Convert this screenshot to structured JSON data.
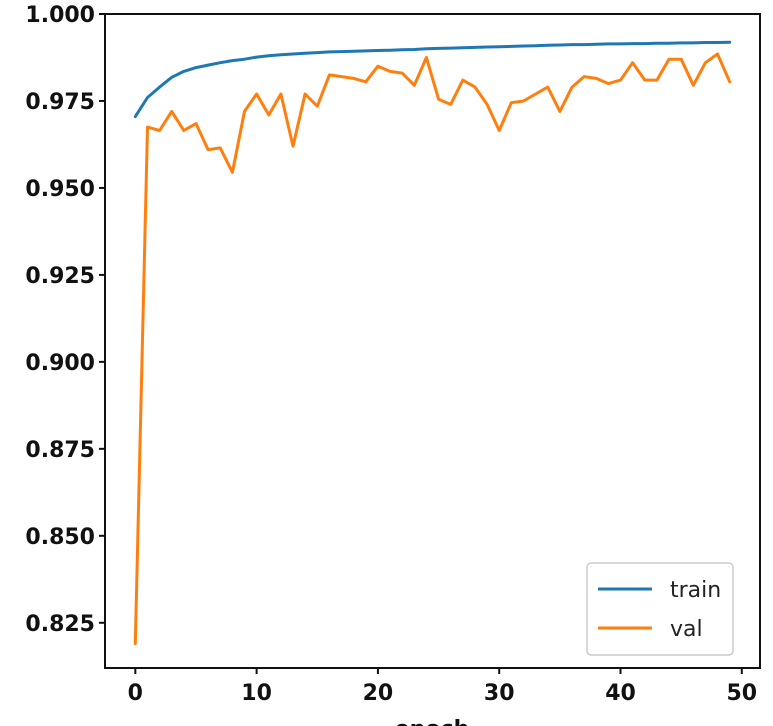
{
  "chart_data": {
    "type": "line",
    "title": "",
    "xlabel": "epoch",
    "ylabel": "",
    "xlim": [
      -2.5,
      51.5
    ],
    "ylim": [
      0.812,
      1.0
    ],
    "xticks": [
      0,
      10,
      20,
      30,
      40,
      50
    ],
    "yticks": [
      0.825,
      0.85,
      0.875,
      0.9,
      0.925,
      0.95,
      0.975,
      1.0
    ],
    "ytick_labels": [
      "0.825",
      "0.850",
      "0.875",
      "0.900",
      "0.925",
      "0.950",
      "0.975",
      "1.000"
    ],
    "grid": false,
    "legend_position": "lower right",
    "x": [
      0,
      1,
      2,
      3,
      4,
      5,
      6,
      7,
      8,
      9,
      10,
      11,
      12,
      13,
      14,
      15,
      16,
      17,
      18,
      19,
      20,
      21,
      22,
      23,
      24,
      25,
      26,
      27,
      28,
      29,
      30,
      31,
      32,
      33,
      34,
      35,
      36,
      37,
      38,
      39,
      40,
      41,
      42,
      43,
      44,
      45,
      46,
      47,
      48,
      49
    ],
    "series": [
      {
        "name": "train",
        "color": "#1f77b4",
        "values": [
          0.9705,
          0.976,
          0.979,
          0.9818,
          0.9835,
          0.9846,
          0.9853,
          0.986,
          0.9866,
          0.987,
          0.9876,
          0.988,
          0.9883,
          0.9885,
          0.9887,
          0.9889,
          0.9891,
          0.9892,
          0.9893,
          0.9894,
          0.9895,
          0.9896,
          0.9897,
          0.9898,
          0.99,
          0.9901,
          0.9902,
          0.9903,
          0.9904,
          0.9905,
          0.9906,
          0.9907,
          0.9908,
          0.9909,
          0.991,
          0.9911,
          0.9912,
          0.9912,
          0.9913,
          0.9914,
          0.9914,
          0.9915,
          0.9915,
          0.9916,
          0.9916,
          0.9917,
          0.9917,
          0.9918,
          0.9918,
          0.9919
        ]
      },
      {
        "name": "val",
        "color": "#ff7f0e",
        "values": [
          0.819,
          0.9675,
          0.9665,
          0.972,
          0.9665,
          0.9685,
          0.961,
          0.9615,
          0.9545,
          0.972,
          0.977,
          0.971,
          0.977,
          0.962,
          0.977,
          0.9735,
          0.9825,
          0.982,
          0.9815,
          0.9805,
          0.985,
          0.9835,
          0.983,
          0.9795,
          0.9875,
          0.9755,
          0.974,
          0.981,
          0.979,
          0.974,
          0.9665,
          0.9745,
          0.975,
          0.977,
          0.979,
          0.972,
          0.979,
          0.982,
          0.9815,
          0.98,
          0.981,
          0.986,
          0.981,
          0.981,
          0.987,
          0.987,
          0.9795,
          0.986,
          0.9885,
          0.9805
        ]
      }
    ]
  }
}
